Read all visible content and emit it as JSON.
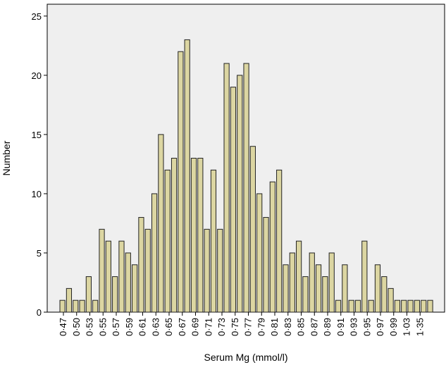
{
  "chart_data": {
    "type": "bar",
    "title": "",
    "xlabel": "Serum Mg (mmol/l)",
    "ylabel": "Number",
    "ylim": [
      0,
      26
    ],
    "yticks": [
      "0",
      "5",
      "10",
      "15",
      "20",
      "25"
    ],
    "x_tick_labels": [
      "0·47",
      "0·50",
      "0·53",
      "0·55",
      "0·57",
      "0·59",
      "0·61",
      "0·63",
      "0·65",
      "0·67",
      "0·69",
      "0·71",
      "0·73",
      "0·75",
      "0·77",
      "0·79",
      "0·81",
      "0·83",
      "0·85",
      "0·87",
      "0·89",
      "0·91",
      "0·93",
      "0·95",
      "0·97",
      "0·99",
      "1·03",
      "1·35"
    ],
    "values": [
      1,
      2,
      1,
      1,
      3,
      1,
      7,
      6,
      3,
      6,
      5,
      4,
      8,
      7,
      10,
      15,
      12,
      13,
      22,
      23,
      13,
      13,
      7,
      12,
      7,
      21,
      19,
      20,
      21,
      14,
      10,
      8,
      11,
      12,
      4,
      5,
      6,
      3,
      5,
      4,
      3,
      5,
      1,
      4,
      1,
      1,
      6,
      1,
      4,
      3,
      2,
      1,
      1,
      1,
      1,
      1,
      1
    ],
    "grid": false,
    "legend": "none",
    "plot_background": "#efefef",
    "bar_fill": "#dcd6a2",
    "bar_stroke": "#222222"
  }
}
